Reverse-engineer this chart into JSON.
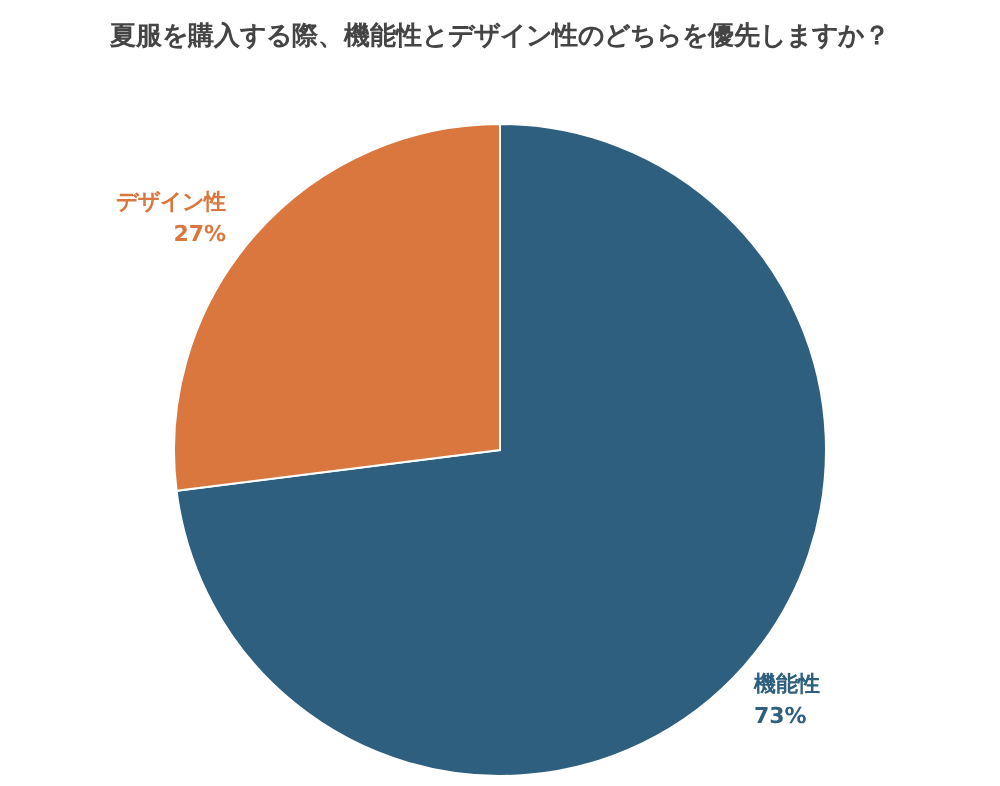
{
  "chart_data": {
    "type": "pie",
    "title": "夏服を購入する際、機能性とデザイン性のどちらを優先しますか？",
    "categories": [
      "機能性",
      "デザイン性"
    ],
    "values": [
      73,
      27
    ],
    "colors": [
      "#2e5f7f",
      "#d9773f"
    ],
    "value_labels": [
      "73%",
      "27%"
    ],
    "legend": false
  }
}
